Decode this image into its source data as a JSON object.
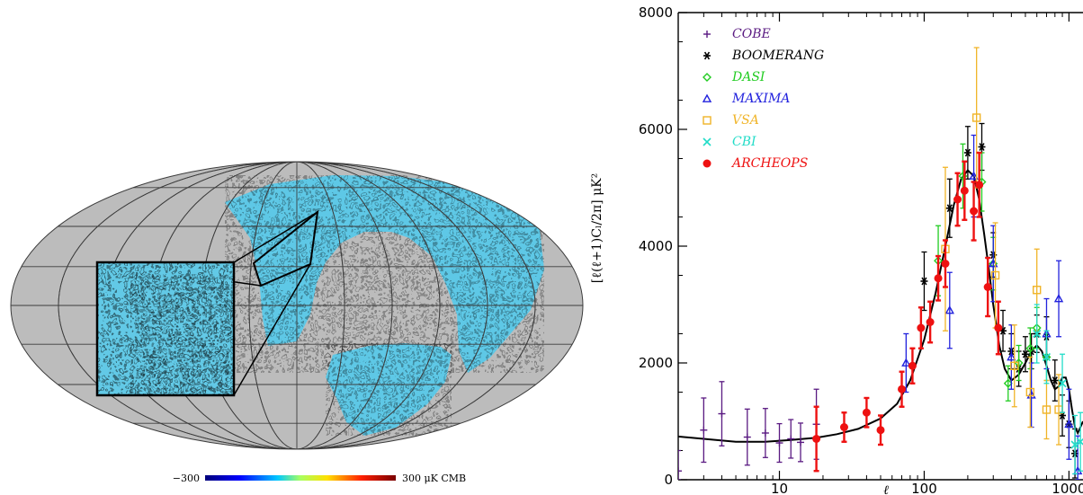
{
  "sky_map": {
    "colorbar": {
      "min_label": "−300",
      "max_label": "300 μK CMB"
    },
    "background_color": "#bcbcbc",
    "grid_color": "#3c3c3c"
  },
  "chart_data": {
    "type": "scatter",
    "title": "",
    "xlabel": "ℓ",
    "ylabel": "[ℓ(ℓ+1)Cₗ/2π]  μK²",
    "xscale": "log",
    "xlim": [
      2,
      1250
    ],
    "ylim": [
      0,
      8000
    ],
    "x_ticks": [
      10,
      100,
      1000
    ],
    "x_tick_labels": [
      "10",
      "100",
      "1000"
    ],
    "y_ticks": [
      0,
      2000,
      4000,
      6000,
      8000
    ],
    "y_tick_labels": [
      "0",
      "2000",
      "4000",
      "6000",
      "8000"
    ],
    "grid": false,
    "legend": {
      "position": "top-left"
    },
    "series": [
      {
        "name": "COBE",
        "color": "#5a1a82",
        "marker": "plus",
        "points": [
          [
            2,
            150,
            350
          ],
          [
            3,
            850,
            550
          ],
          [
            4,
            1130,
            550
          ],
          [
            6,
            730,
            480
          ],
          [
            8,
            800,
            420
          ],
          [
            10,
            630,
            330
          ],
          [
            12,
            700,
            330
          ],
          [
            14,
            640,
            330
          ],
          [
            18,
            950,
            600
          ]
        ]
      },
      {
        "name": "BOOMERANG",
        "color": "#000000",
        "marker": "asterisk",
        "points": [
          [
            100,
            3400,
            500
          ],
          [
            150,
            4650,
            500
          ],
          [
            200,
            5600,
            450
          ],
          [
            250,
            5700,
            400
          ],
          [
            300,
            3850,
            380
          ],
          [
            350,
            2550,
            350
          ],
          [
            400,
            2200,
            300
          ],
          [
            450,
            1900,
            300
          ],
          [
            500,
            2150,
            300
          ],
          [
            550,
            2200,
            300
          ],
          [
            600,
            2500,
            320
          ],
          [
            700,
            2450,
            340
          ],
          [
            800,
            1700,
            350
          ],
          [
            900,
            1100,
            350
          ],
          [
            1000,
            950,
            400
          ],
          [
            1100,
            450,
            420
          ]
        ]
      },
      {
        "name": "DASI",
        "color": "#22cc22",
        "marker": "diamond",
        "points": [
          [
            125,
            3750,
            600
          ],
          [
            185,
            5200,
            550
          ],
          [
            250,
            5100,
            500
          ],
          [
            300,
            3700,
            450
          ],
          [
            380,
            1650,
            300
          ],
          [
            450,
            2000,
            300
          ],
          [
            540,
            2250,
            350
          ],
          [
            600,
            2600,
            350
          ],
          [
            700,
            2100,
            400
          ]
        ]
      },
      {
        "name": "MAXIMA",
        "color": "#2222dd",
        "marker": "triangle",
        "points": [
          [
            75,
            2000,
            500
          ],
          [
            150,
            2900,
            650
          ],
          [
            220,
            5200,
            700
          ],
          [
            300,
            3700,
            650
          ],
          [
            400,
            2100,
            550
          ],
          [
            550,
            1450,
            550
          ],
          [
            700,
            2500,
            600
          ],
          [
            850,
            3100,
            650
          ],
          [
            1000,
            950,
            600
          ],
          [
            1150,
            150,
            600
          ]
        ]
      },
      {
        "name": "VSA",
        "color": "#f0b428",
        "marker": "square",
        "points": [
          [
            140,
            3950,
            1400
          ],
          [
            230,
            6200,
            1200
          ],
          [
            310,
            3500,
            900
          ],
          [
            420,
            1950,
            700
          ],
          [
            540,
            1500,
            600
          ],
          [
            600,
            3250,
            700
          ],
          [
            700,
            1200,
            500
          ],
          [
            850,
            1200,
            600
          ]
        ]
      },
      {
        "name": "CBI",
        "color": "#22dcc8",
        "marker": "x",
        "points": [
          [
            600,
            2500,
            500
          ],
          [
            700,
            2100,
            450
          ],
          [
            900,
            1650,
            500
          ],
          [
            1100,
            600,
            500
          ],
          [
            1200,
            650,
            500
          ]
        ]
      },
      {
        "name": "ARCHEOPS",
        "color": "#ee1111",
        "marker": "circle",
        "points": [
          [
            18,
            700,
            550
          ],
          [
            28,
            900,
            250
          ],
          [
            40,
            1150,
            250
          ],
          [
            50,
            850,
            250
          ],
          [
            70,
            1550,
            300
          ],
          [
            83,
            1950,
            300
          ],
          [
            95,
            2600,
            350
          ],
          [
            110,
            2700,
            350
          ],
          [
            125,
            3450,
            380
          ],
          [
            140,
            3700,
            400
          ],
          [
            170,
            4800,
            450
          ],
          [
            190,
            4950,
            500
          ],
          [
            220,
            4600,
            500
          ],
          [
            240,
            5050,
            550
          ],
          [
            275,
            3300,
            500
          ],
          [
            325,
            2600,
            450
          ]
        ]
      }
    ],
    "model_curve": {
      "color": "#000000",
      "x": [
        2,
        3,
        5,
        8,
        12,
        18,
        25,
        35,
        50,
        65,
        80,
        100,
        120,
        140,
        160,
        180,
        200,
        220,
        240,
        260,
        280,
        300,
        330,
        360,
        400,
        450,
        500,
        550,
        600,
        650,
        700,
        750,
        800,
        850,
        900,
        950,
        1000,
        1050,
        1100,
        1150,
        1200,
        1250
      ],
      "y": [
        740,
        700,
        650,
        650,
        680,
        720,
        780,
        870,
        1050,
        1300,
        1700,
        2400,
        3200,
        4000,
        4700,
        5150,
        5300,
        5200,
        4800,
        4200,
        3600,
        3000,
        2300,
        1900,
        1700,
        1800,
        2000,
        2200,
        2300,
        2200,
        1950,
        1700,
        1550,
        1600,
        1750,
        1750,
        1550,
        1200,
        900,
        800,
        900,
        1000
      ]
    }
  }
}
